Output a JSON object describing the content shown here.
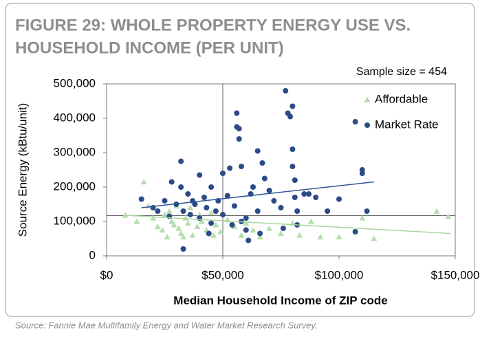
{
  "chart_data": {
    "type": "scatter",
    "title_lines": [
      "FIGURE 29: WHOLE PROPERTY ENERGY USE VS.",
      "HOUSEHOLD INCOME (PER UNIT)"
    ],
    "annotation": "Sample size = 454",
    "xlabel": "Median Household Income of ZIP code",
    "ylabel": "Source Energy (kBtu/unit)",
    "source": "Source: Fannie Mae Multifamily Energy and Water Market Research Survey.",
    "xlim": [
      0,
      150000
    ],
    "ylim": [
      0,
      500000
    ],
    "xticks": [
      {
        "value": 0,
        "label": "$0"
      },
      {
        "value": 50000,
        "label": "$50,000"
      },
      {
        "value": 100000,
        "label": "$100,000"
      },
      {
        "value": 150000,
        "label": "$150,000"
      }
    ],
    "yticks": [
      0,
      {
        "value": 100000,
        "label": "100,000"
      },
      {
        "value": 200000,
        "label": "200,000"
      },
      {
        "value": 300000,
        "label": "300,000"
      },
      {
        "value": 400000,
        "label": "400,000"
      },
      {
        "value": 500000,
        "label": "500,000"
      }
    ],
    "reference_lines": {
      "x": 50000,
      "y": 117000
    },
    "series": [
      {
        "name": "Affordable",
        "color": "#b5ddae",
        "marker": "triangle",
        "x": [
          8000,
          13000,
          16000,
          18000,
          20000,
          22000,
          24000,
          25000,
          26000,
          28000,
          29000,
          30000,
          31000,
          32000,
          34000,
          35000,
          36000,
          37000,
          39000,
          41000,
          43000,
          45000,
          47000,
          49000,
          52000,
          55000,
          58000,
          60000,
          63000,
          66000,
          70000,
          75000,
          80000,
          83000,
          88000,
          92000,
          100000,
          110000,
          115000,
          142000,
          147000,
          27000,
          33000,
          40000,
          46000
        ],
        "values": [
          118000,
          100000,
          215000,
          145000,
          110000,
          85000,
          75000,
          120000,
          55000,
          100000,
          90000,
          145000,
          80000,
          65000,
          110000,
          95000,
          140000,
          60000,
          85000,
          100000,
          75000,
          125000,
          90000,
          70000,
          105000,
          85000,
          60000,
          95000,
          75000,
          55000,
          80000,
          65000,
          95000,
          60000,
          100000,
          55000,
          55000,
          110000,
          50000,
          130000,
          115000,
          130000,
          55000,
          120000,
          60000
        ]
      },
      {
        "name": "Market Rate",
        "color": "#2b4a87",
        "marker": "circle",
        "x": [
          15000,
          20000,
          22000,
          25000,
          28000,
          30000,
          32000,
          32000,
          33000,
          33000,
          35000,
          36000,
          38000,
          40000,
          40000,
          42000,
          43000,
          45000,
          45000,
          47000,
          48000,
          50000,
          50000,
          52000,
          53000,
          55000,
          56000,
          56000,
          57000,
          57000,
          58000,
          58000,
          60000,
          60000,
          62000,
          63000,
          65000,
          65000,
          67000,
          68000,
          70000,
          72000,
          75000,
          76000,
          77000,
          78000,
          79000,
          80000,
          80000,
          80000,
          81000,
          81000,
          82000,
          82000,
          85000,
          87000,
          90000,
          95000,
          100000,
          107000,
          110000,
          110000,
          112000,
          107000,
          37000,
          27000,
          44000,
          54000,
          61000,
          66000
        ],
        "values": [
          165000,
          140000,
          130000,
          160000,
          215000,
          150000,
          275000,
          200000,
          130000,
          20000,
          180000,
          120000,
          150000,
          235000,
          110000,
          170000,
          140000,
          200000,
          95000,
          130000,
          160000,
          240000,
          120000,
          175000,
          255000,
          145000,
          415000,
          375000,
          370000,
          340000,
          260000,
          100000,
          110000,
          75000,
          180000,
          200000,
          305000,
          130000,
          270000,
          225000,
          190000,
          160000,
          140000,
          80000,
          480000,
          415000,
          405000,
          435000,
          310000,
          260000,
          220000,
          170000,
          130000,
          90000,
          180000,
          180000,
          170000,
          130000,
          165000,
          390000,
          250000,
          240000,
          130000,
          70000,
          160000,
          115000,
          65000,
          90000,
          45000,
          65000
        ]
      }
    ],
    "trendlines": [
      {
        "name": "Affordable",
        "color": "#a8d59f",
        "x": [
          8000,
          148000
        ],
        "y": [
          118000,
          65000
        ]
      },
      {
        "name": "Market Rate",
        "color": "#2e5597",
        "x": [
          15000,
          115000
        ],
        "y": [
          140000,
          215000
        ]
      }
    ]
  }
}
